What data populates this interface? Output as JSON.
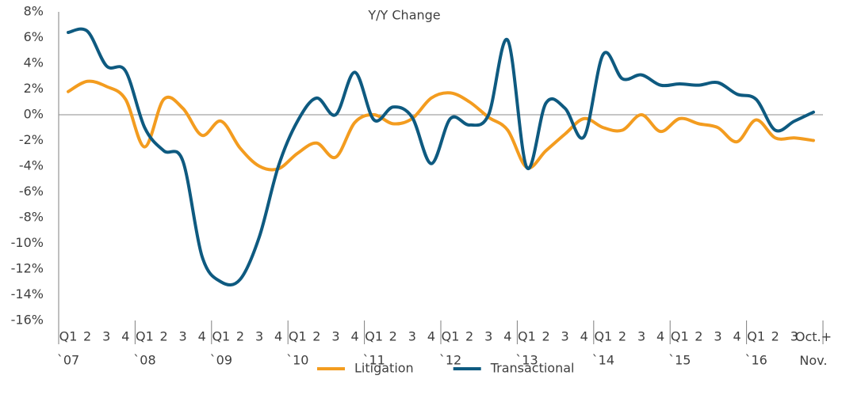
{
  "chart_data": {
    "type": "line",
    "title": "Y/Y Change",
    "categories": [
      "Q1",
      "2",
      "3",
      "4",
      "Q1",
      "2",
      "3",
      "4",
      "Q1",
      "2",
      "3",
      "4",
      "Q1",
      "2",
      "3",
      "4",
      "Q1",
      "2",
      "3",
      "4",
      "Q1",
      "2",
      "3",
      "4",
      "Q1",
      "2",
      "3",
      "4",
      "Q1",
      "2",
      "3",
      "4",
      "Q1",
      "2",
      "3",
      "4",
      "Q1",
      "2",
      "3",
      "Oct.+ Nov."
    ],
    "category_groups": [
      "`07",
      "`08",
      "`09",
      "`10",
      "`11",
      "`12",
      "`13",
      "`14",
      "`15",
      "`16"
    ],
    "series": [
      {
        "name": "Litigation",
        "color": "#f39c1f",
        "values": [
          1.8,
          2.6,
          2.2,
          1.2,
          -2.5,
          1.2,
          0.5,
          -1.6,
          -0.5,
          -2.6,
          -4.0,
          -4.2,
          -3.0,
          -2.2,
          -3.3,
          -0.6,
          0.0,
          -0.7,
          -0.3,
          1.3,
          1.7,
          1.0,
          -0.2,
          -1.2,
          -4.1,
          -2.8,
          -1.5,
          -0.3,
          -1.0,
          -1.2,
          0.0,
          -1.3,
          -0.3,
          -0.7,
          -1.0,
          -2.1,
          -0.4,
          -1.8,
          -1.8,
          -2.0
        ]
      },
      {
        "name": "Transactional",
        "color": "#0e5a80",
        "values": [
          6.4,
          6.5,
          3.8,
          3.4,
          -1.0,
          -2.8,
          -3.6,
          -11.0,
          -13.0,
          -12.8,
          -9.5,
          -4.0,
          -0.5,
          1.3,
          0.0,
          3.3,
          -0.4,
          0.6,
          -0.2,
          -3.8,
          -0.3,
          -0.8,
          0.0,
          5.8,
          -4.1,
          0.9,
          0.5,
          -1.7,
          4.7,
          2.8,
          3.1,
          2.3,
          2.4,
          2.3,
          2.5,
          1.6,
          1.2,
          -1.2,
          -0.5,
          0.2
        ]
      }
    ],
    "ylim": [
      -16,
      8
    ],
    "yticks": [
      {
        "value": -16,
        "label": "-16%"
      },
      {
        "value": -14,
        "label": "-14%"
      },
      {
        "value": -12,
        "label": "-12%"
      },
      {
        "value": -10,
        "label": "-10%"
      },
      {
        "value": -8,
        "label": "-8%"
      },
      {
        "value": -6,
        "label": "-6%"
      },
      {
        "value": -4,
        "label": "-4%"
      },
      {
        "value": -2,
        "label": "-2%"
      },
      {
        "value": 0,
        "label": "0%"
      },
      {
        "value": 2,
        "label": "2%"
      },
      {
        "value": 4,
        "label": "4%"
      },
      {
        "value": 6,
        "label": "6%"
      },
      {
        "value": 8,
        "label": "8%"
      }
    ],
    "legend": "bottom"
  }
}
